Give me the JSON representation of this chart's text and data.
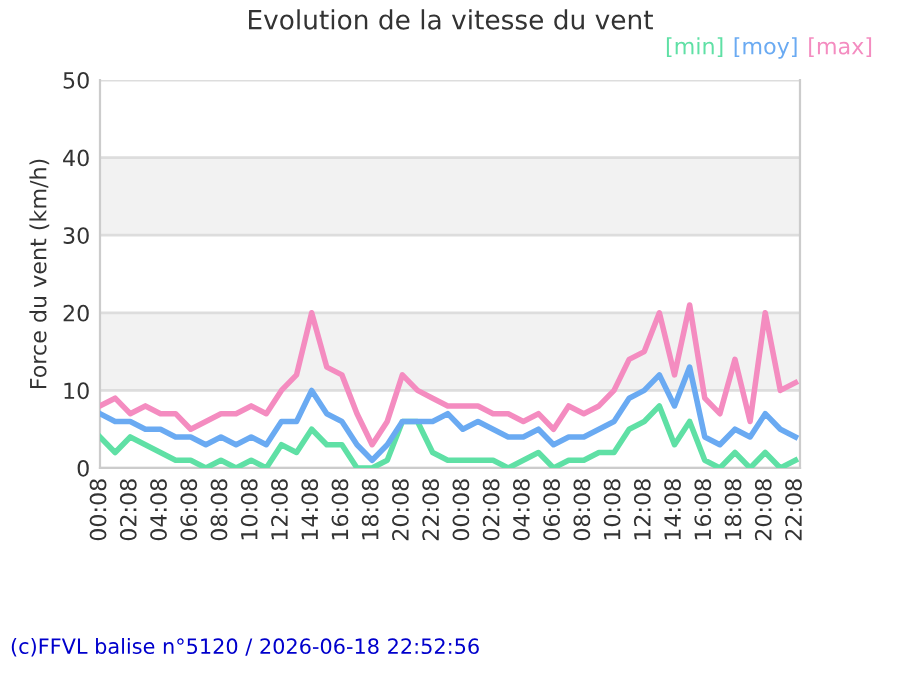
{
  "chart_data": {
    "type": "line",
    "title": "Evolution de la vitesse du vent",
    "ylabel": "Force du vent (km/h)",
    "x": [
      "2026-06-17T00:08",
      "2026-06-17T01:08",
      "2026-06-17T02:08",
      "2026-06-17T03:08",
      "2026-06-17T04:08",
      "2026-06-17T05:08",
      "2026-06-17T06:08",
      "2026-06-17T07:08",
      "2026-06-17T08:08",
      "2026-06-17T09:08",
      "2026-06-17T10:08",
      "2026-06-17T11:08",
      "2026-06-17T12:08",
      "2026-06-17T13:08",
      "2026-06-17T14:08",
      "2026-06-17T15:08",
      "2026-06-17T16:08",
      "2026-06-17T17:08",
      "2026-06-17T18:08",
      "2026-06-17T19:08",
      "2026-06-17T20:08",
      "2026-06-17T21:08",
      "2026-06-17T22:08",
      "2026-06-17T23:08",
      "2026-06-18T00:08",
      "2026-06-18T01:08",
      "2026-06-18T02:08",
      "2026-06-18T03:08",
      "2026-06-18T04:08",
      "2026-06-18T05:08",
      "2026-06-18T06:08",
      "2026-06-18T07:08",
      "2026-06-18T08:08",
      "2026-06-18T09:08",
      "2026-06-18T10:08",
      "2026-06-18T11:08",
      "2026-06-18T12:08",
      "2026-06-18T13:08",
      "2026-06-18T14:08",
      "2026-06-18T15:08",
      "2026-06-18T16:08",
      "2026-06-18T17:08",
      "2026-06-18T18:08",
      "2026-06-18T19:08",
      "2026-06-18T20:08",
      "2026-06-18T21:08",
      "2026-06-18T22:08"
    ],
    "series": [
      {
        "name": "[min]",
        "color": "#5fe0a5",
        "values": [
          4,
          2,
          4,
          3,
          2,
          1,
          1,
          0,
          1,
          0,
          1,
          0,
          3,
          2,
          5,
          3,
          3,
          0,
          0,
          1,
          6,
          6,
          2,
          1,
          1,
          1,
          1,
          0,
          1,
          2,
          0,
          1,
          1,
          2,
          2,
          5,
          6,
          8,
          3,
          6,
          1,
          0,
          2,
          0,
          2,
          0,
          1
        ]
      },
      {
        "name": "[moy]",
        "color": "#6aaaf2",
        "values": [
          7,
          6,
          6,
          5,
          5,
          4,
          4,
          3,
          4,
          3,
          4,
          3,
          6,
          6,
          10,
          7,
          6,
          3,
          1,
          3,
          6,
          6,
          6,
          7,
          5,
          6,
          5,
          4,
          4,
          5,
          3,
          4,
          4,
          5,
          6,
          9,
          10,
          12,
          8,
          13,
          4,
          3,
          5,
          4,
          7,
          5,
          4
        ]
      },
      {
        "name": "[max]",
        "color": "#f48cc0",
        "values": [
          8,
          9,
          7,
          8,
          7,
          7,
          5,
          6,
          7,
          7,
          8,
          7,
          10,
          12,
          20,
          13,
          12,
          7,
          3,
          6,
          12,
          10,
          9,
          8,
          8,
          8,
          7,
          7,
          6,
          7,
          5,
          8,
          7,
          8,
          10,
          14,
          15,
          20,
          12,
          21,
          9,
          7,
          14,
          6,
          20,
          10,
          11
        ]
      }
    ],
    "xlim": [
      "2026-06-17T00:08",
      "2026-06-18T22:26"
    ],
    "xticks": [
      {
        "value": "2026-06-17T00:08",
        "label": "00:08"
      },
      {
        "value": "2026-06-17T02:08",
        "label": "02:08"
      },
      {
        "value": "2026-06-17T04:08",
        "label": "04:08"
      },
      {
        "value": "2026-06-17T06:08",
        "label": "06:08"
      },
      {
        "value": "2026-06-17T08:08",
        "label": "08:08"
      },
      {
        "value": "2026-06-17T10:08",
        "label": "10:08"
      },
      {
        "value": "2026-06-17T12:08",
        "label": "12:08"
      },
      {
        "value": "2026-06-17T14:08",
        "label": "14:08"
      },
      {
        "value": "2026-06-17T16:08",
        "label": "16:08"
      },
      {
        "value": "2026-06-17T18:08",
        "label": "18:08"
      },
      {
        "value": "2026-06-17T20:08",
        "label": "20:08"
      },
      {
        "value": "2026-06-17T22:08",
        "label": "22:08"
      },
      {
        "value": "2026-06-18T00:08",
        "label": "00:08"
      },
      {
        "value": "2026-06-18T02:08",
        "label": "02:08"
      },
      {
        "value": "2026-06-18T04:08",
        "label": "04:08"
      },
      {
        "value": "2026-06-18T06:08",
        "label": "06:08"
      },
      {
        "value": "2026-06-18T08:08",
        "label": "08:08"
      },
      {
        "value": "2026-06-18T10:08",
        "label": "10:08"
      },
      {
        "value": "2026-06-18T12:08",
        "label": "12:08"
      },
      {
        "value": "2026-06-18T14:08",
        "label": "14:08"
      },
      {
        "value": "2026-06-18T16:08",
        "label": "16:08"
      },
      {
        "value": "2026-06-18T18:08",
        "label": "18:08"
      },
      {
        "value": "2026-06-18T20:08",
        "label": "20:08"
      },
      {
        "value": "2026-06-18T22:08",
        "label": "22:08"
      }
    ],
    "ylim": [
      0,
      50
    ],
    "yticks": [
      0,
      10,
      20,
      30,
      40,
      50
    ],
    "bands": [
      {
        "axis": "y",
        "from": 10,
        "to": 20,
        "color": "#f2f2f2"
      },
      {
        "axis": "y",
        "from": 30,
        "to": 40,
        "color": "#f2f2f2"
      }
    ],
    "grid": "y",
    "legend": "top right",
    "marker": "none",
    "line_style": "solid",
    "annotations": [
      "(c)FFVL balise n°5120 / 2026-06-18 22:52:56"
    ]
  }
}
